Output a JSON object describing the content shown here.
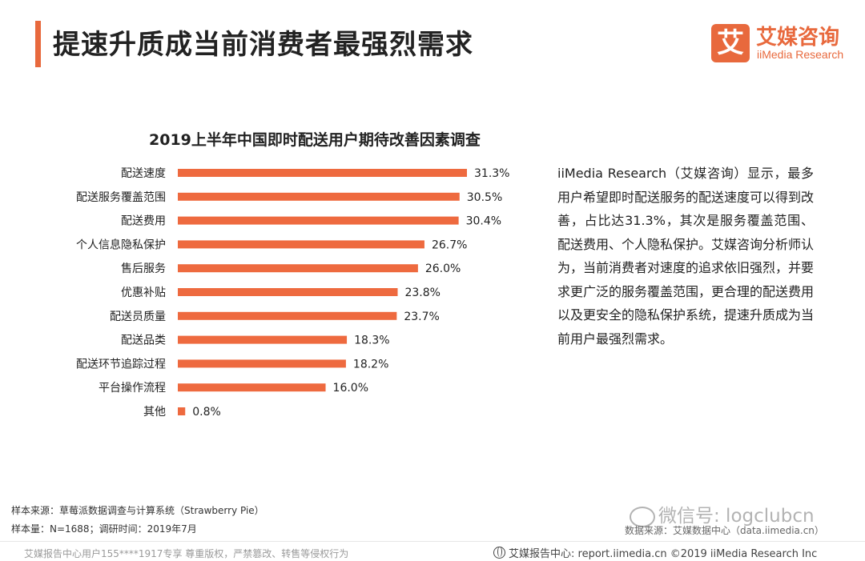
{
  "header": {
    "title": "提速升质成当前消费者最强烈需求",
    "logo_mark": "艾",
    "logo_cn": "艾媒咨询",
    "logo_en": "iiMedia Research",
    "accent_color": "#e8693d"
  },
  "chart_data": {
    "type": "bar",
    "orientation": "horizontal",
    "title": "2019上半年中国即时配送用户期待改善因素调查",
    "categories": [
      "配送速度",
      "配送服务覆盖范围",
      "配送费用",
      "个人信息隐私保护",
      "售后服务",
      "优惠补贴",
      "配送员质量",
      "配送品类",
      "配送环节追踪过程",
      "平台操作流程",
      "其他"
    ],
    "values": [
      31.3,
      30.5,
      30.4,
      26.7,
      26.0,
      23.8,
      23.7,
      18.3,
      18.2,
      16.0,
      0.8
    ],
    "value_labels": [
      "31.3%",
      "30.5%",
      "30.4%",
      "26.7%",
      "26.0%",
      "23.8%",
      "23.7%",
      "18.3%",
      "18.2%",
      "16.0%",
      "0.8%"
    ],
    "unit": "%",
    "bar_color": "#ee6a3f",
    "xlim": [
      0,
      31.3
    ],
    "grid": false,
    "legend": "none"
  },
  "description": "iiMedia Research（艾媒咨询）显示，最多用户希望即时配送服务的配送速度可以得到改善，占比达31.3%，其次是服务覆盖范围、配送费用、个人隐私保护。艾媒咨询分析师认为，当前消费者对速度的追求依旧强烈，并要求更广泛的服务覆盖范围，更合理的配送费用以及更安全的隐私保护系统，提速升质成为当前用户最强烈需求。",
  "source": {
    "line1": "样本来源：草莓派数据调查与计算系统（Strawberry Pie）",
    "line2": "样本量：N=1688；调研时间：2019年7月",
    "data_source": "数据来源：艾媒数据中心（data.iimedia.cn）"
  },
  "watermark": "微信号: logclubcn",
  "footer": {
    "left": "艾媒报告中心用户155****1917专享 尊重版权，严禁篡改、转售等侵权行为",
    "right": "艾媒报告中心: report.iimedia.cn  ©2019  iiMedia Research  Inc"
  }
}
